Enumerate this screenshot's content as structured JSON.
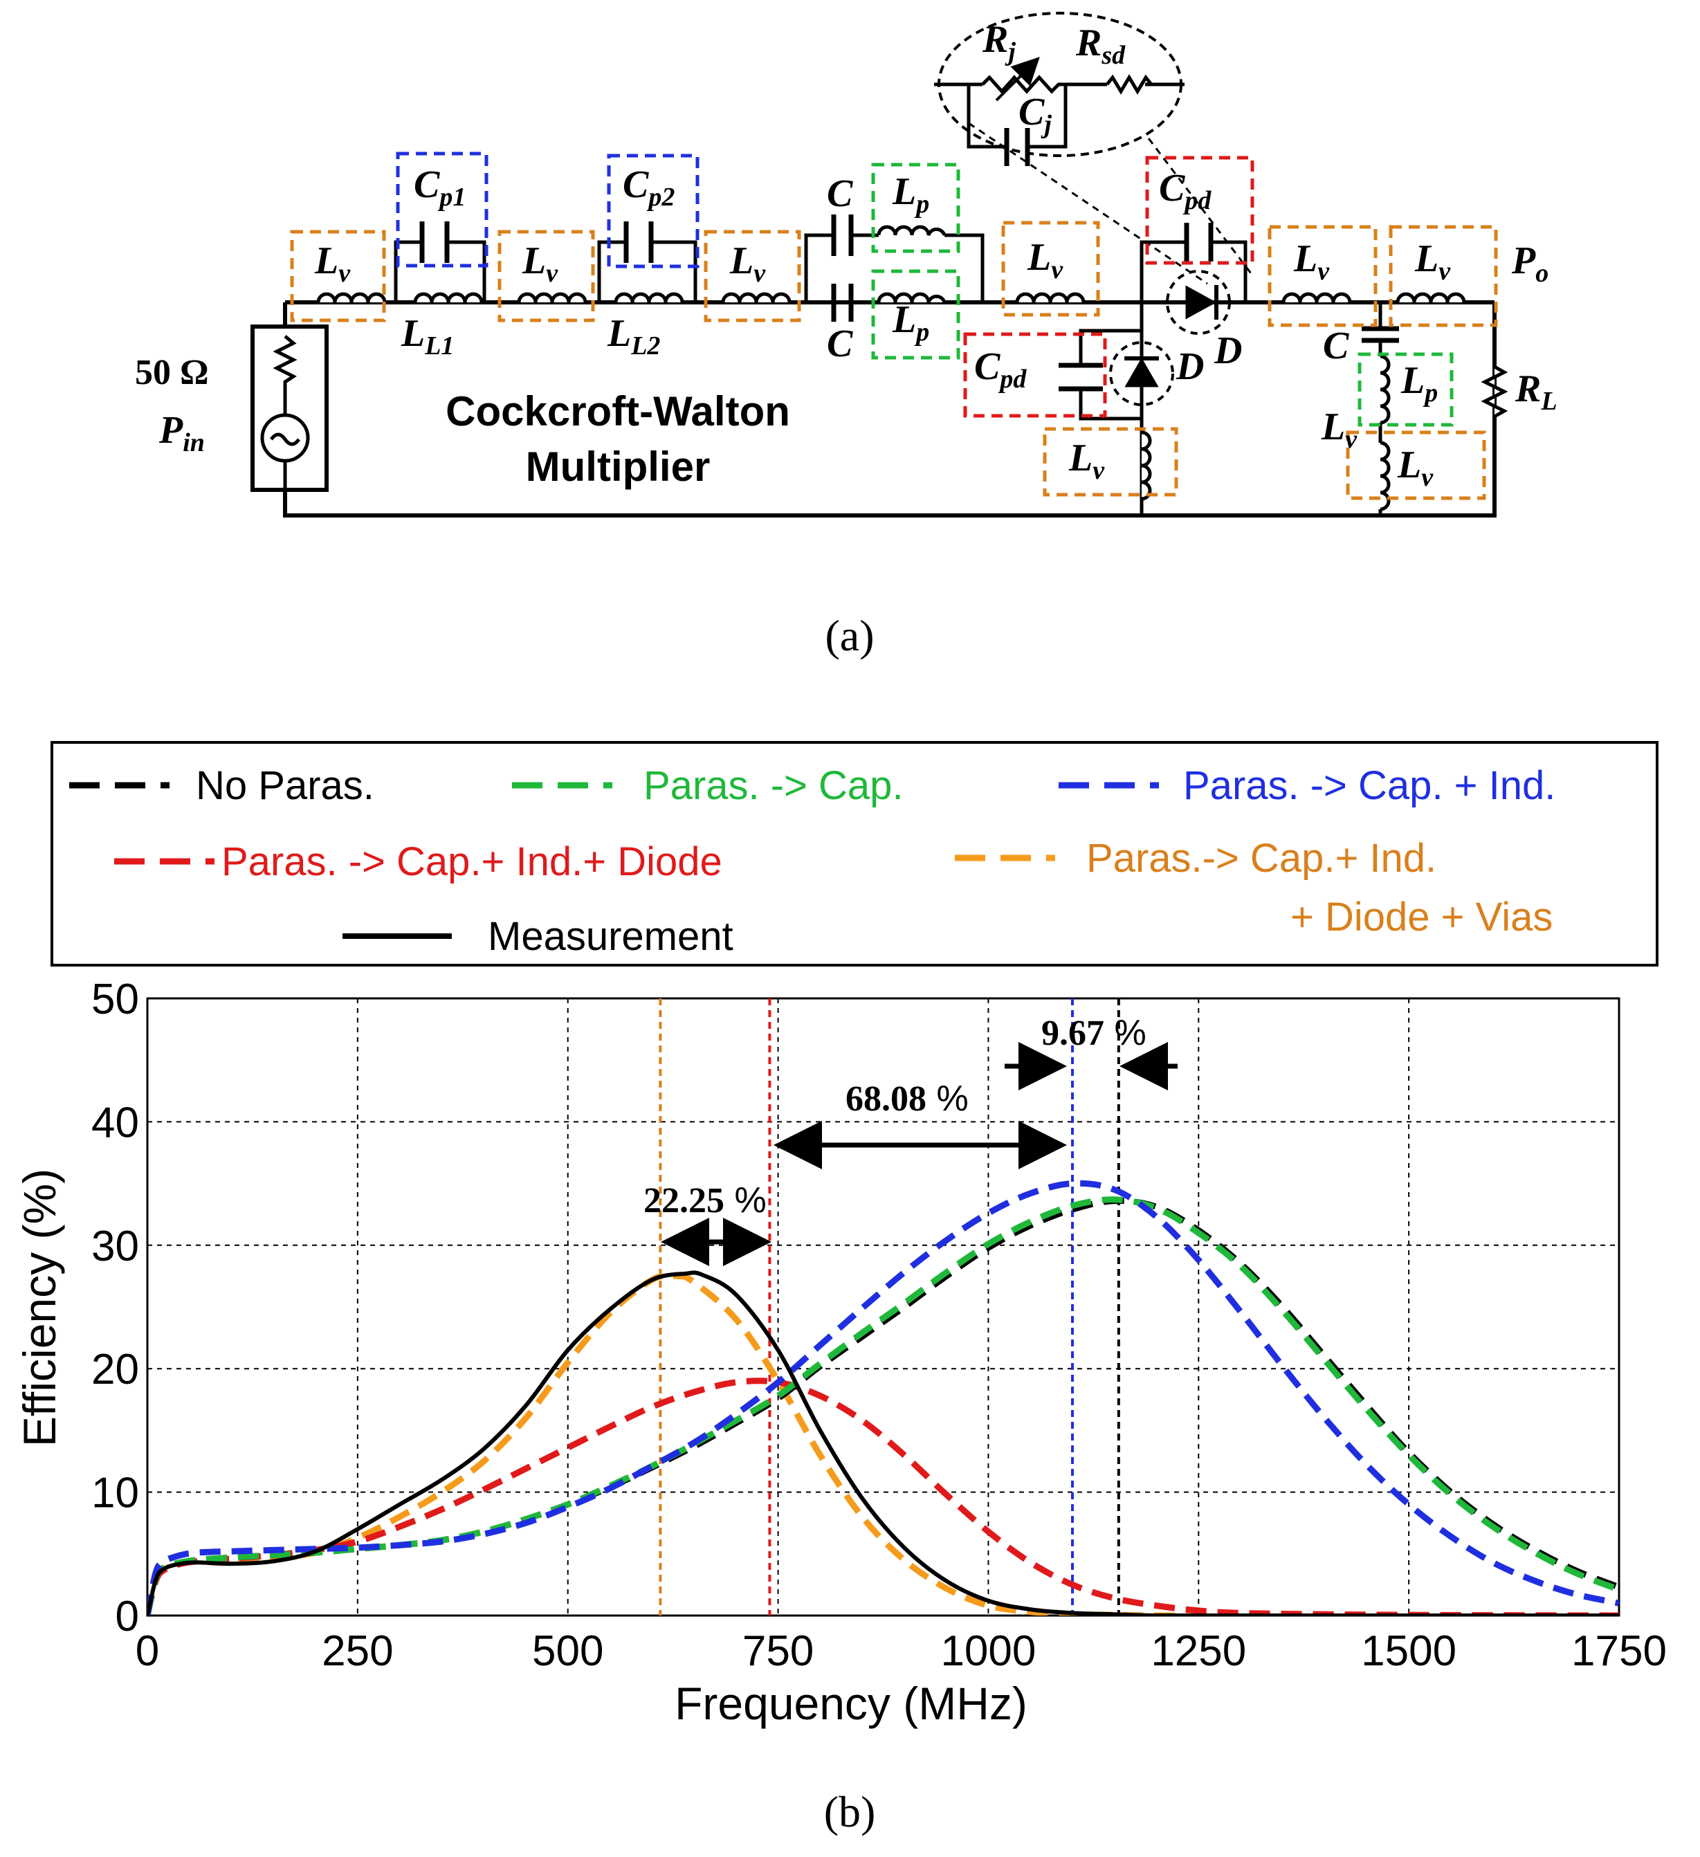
{
  "circuit": {
    "panel_label": "(a)",
    "title_line1": "Cockcroft-Walton",
    "title_line2": "Multiplier",
    "source": {
      "impedance": "50 Ω",
      "label_main": "P",
      "label_sub": "in"
    },
    "output": {
      "label_main": "P",
      "label_sub": "o"
    },
    "load": {
      "label_main": "R",
      "label_sub": "L"
    },
    "labels": {
      "lv": {
        "main": "L",
        "sub": "v"
      },
      "ll1": {
        "main": "L",
        "sub": "L1"
      },
      "ll2": {
        "main": "L",
        "sub": "L2"
      },
      "cp1": {
        "main": "C",
        "sub": "p1"
      },
      "cp2": {
        "main": "C",
        "sub": "p2"
      },
      "cpd": {
        "main": "C",
        "sub": "pd"
      },
      "lp": {
        "main": "L",
        "sub": "p"
      },
      "c": "C",
      "d": "D",
      "rj": {
        "main": "R",
        "sub": "j"
      },
      "rsd": {
        "main": "R",
        "sub": "sd"
      },
      "cj": {
        "main": "C",
        "sub": "j"
      }
    },
    "colors": {
      "orange": "#d9801c",
      "blue": "#1f2fe0",
      "green": "#1fb83a",
      "red": "#e01a1a",
      "wire": "#000000"
    }
  },
  "chart_data": {
    "type": "line",
    "panel_label": "(b)",
    "xlabel": "Frequency (MHz)",
    "ylabel": "Efficiency (%)",
    "xlim": [
      0,
      1750
    ],
    "ylim": [
      0,
      50
    ],
    "xticks": [
      0,
      250,
      500,
      750,
      1000,
      1250,
      1500,
      1750
    ],
    "yticks": [
      0,
      10,
      20,
      30,
      40,
      50
    ],
    "grid": true,
    "legend": {
      "position": "top",
      "entries": [
        {
          "label": "No Paras.",
          "color": "#000000",
          "style": "dashed"
        },
        {
          "label": "Paras. -> Cap.",
          "color": "#1fb83a",
          "style": "dashed"
        },
        {
          "label": "Paras. -> Cap. + Ind.",
          "color": "#1f2fe0",
          "style": "dashed"
        },
        {
          "label": "Paras. -> Cap.+ Ind.+ Diode",
          "color": "#e01a1a",
          "style": "dashed"
        },
        {
          "label_line1": "Paras.-> Cap.+ Ind.",
          "label_line2": "+ Diode + Vias",
          "color": "#f59b1c",
          "style": "dashed"
        },
        {
          "label": "Measurement",
          "color": "#000000",
          "style": "solid"
        }
      ]
    },
    "series": [
      {
        "name": "No Paras.",
        "color": "#000000",
        "style": "dashed",
        "x": [
          0,
          10,
          20,
          40,
          60,
          100,
          150,
          200,
          250,
          300,
          350,
          400,
          450,
          500,
          550,
          600,
          650,
          700,
          750,
          800,
          850,
          900,
          950,
          1000,
          1050,
          1100,
          1150,
          1200,
          1250,
          1300,
          1350,
          1400,
          1450,
          1500,
          1550,
          1600,
          1650,
          1700,
          1750
        ],
        "y": [
          0,
          3.0,
          3.9,
          4.3,
          4.5,
          4.7,
          4.9,
          5.1,
          5.4,
          5.7,
          6.1,
          6.8,
          7.8,
          9.0,
          10.4,
          12.0,
          13.7,
          15.6,
          17.6,
          20.2,
          22.6,
          25.0,
          27.5,
          29.8,
          31.6,
          32.9,
          33.6,
          33.1,
          31.2,
          28.5,
          25.0,
          21.0,
          17.0,
          13.2,
          10.0,
          7.4,
          5.3,
          3.6,
          2.3
        ]
      },
      {
        "name": "Paras. -> Cap.",
        "color": "#1fb83a",
        "style": "dashed",
        "x": [
          0,
          10,
          20,
          40,
          60,
          100,
          150,
          200,
          250,
          300,
          350,
          400,
          450,
          500,
          550,
          600,
          650,
          700,
          750,
          800,
          850,
          900,
          950,
          1000,
          1050,
          1100,
          1150,
          1200,
          1250,
          1300,
          1350,
          1400,
          1450,
          1500,
          1550,
          1600,
          1650,
          1700,
          1750
        ],
        "y": [
          0,
          3.0,
          3.9,
          4.3,
          4.5,
          4.7,
          4.9,
          5.1,
          5.4,
          5.7,
          6.1,
          6.8,
          7.8,
          9.0,
          10.5,
          12.1,
          13.9,
          15.8,
          17.8,
          20.4,
          22.9,
          25.3,
          27.8,
          30.1,
          31.9,
          33.2,
          33.7,
          33.0,
          31.0,
          28.3,
          24.7,
          20.7,
          16.7,
          13.0,
          9.8,
          7.2,
          5.1,
          3.4,
          2.1
        ]
      },
      {
        "name": "Paras. -> Cap. + Ind.",
        "color": "#1f2fe0",
        "style": "dashed",
        "x": [
          0,
          10,
          20,
          40,
          60,
          100,
          150,
          200,
          250,
          300,
          350,
          400,
          450,
          500,
          550,
          600,
          650,
          700,
          750,
          800,
          850,
          900,
          950,
          1000,
          1050,
          1100,
          1150,
          1200,
          1250,
          1300,
          1350,
          1400,
          1450,
          1500,
          1550,
          1600,
          1650,
          1700,
          1750
        ],
        "y": [
          0,
          3.5,
          4.4,
          4.9,
          5.1,
          5.2,
          5.3,
          5.4,
          5.5,
          5.7,
          6.0,
          6.6,
          7.5,
          8.8,
          10.3,
          12.1,
          14.0,
          16.3,
          18.9,
          21.9,
          24.9,
          27.8,
          30.4,
          32.6,
          34.2,
          35.0,
          34.5,
          32.3,
          28.8,
          24.6,
          20.2,
          16.0,
          12.2,
          9.0,
          6.4,
          4.3,
          2.8,
          1.7,
          1.0
        ]
      },
      {
        "name": "Paras. -> Cap.+ Ind.+ Diode",
        "color": "#e01a1a",
        "style": "dashed",
        "x": [
          0,
          10,
          20,
          40,
          60,
          100,
          150,
          200,
          250,
          300,
          350,
          400,
          450,
          500,
          550,
          600,
          650,
          700,
          750,
          800,
          850,
          900,
          950,
          1000,
          1050,
          1100,
          1150,
          1200,
          1250,
          1300,
          1400,
          1500,
          1600,
          1750
        ],
        "y": [
          0,
          2.8,
          3.7,
          4.2,
          4.4,
          4.6,
          4.9,
          5.3,
          6.0,
          7.2,
          8.6,
          10.2,
          11.9,
          13.6,
          15.3,
          16.9,
          18.1,
          18.9,
          18.9,
          17.8,
          15.8,
          13.0,
          9.8,
          6.8,
          4.3,
          2.5,
          1.4,
          0.8,
          0.4,
          0.2,
          0.1,
          0.05,
          0.02,
          0
        ]
      },
      {
        "name": "Paras.-> Cap.+ Ind. + Diode + Vias",
        "color": "#f59b1c",
        "style": "dashed",
        "x": [
          0,
          10,
          20,
          40,
          60,
          100,
          150,
          200,
          250,
          300,
          350,
          400,
          450,
          500,
          550,
          600,
          630,
          650,
          700,
          750,
          800,
          850,
          900,
          950,
          1000,
          1050,
          1100,
          1150,
          1200,
          1300,
          1500,
          1750
        ],
        "y": [
          0,
          3.0,
          3.9,
          4.3,
          4.4,
          4.5,
          4.7,
          5.1,
          6.3,
          8.0,
          10.0,
          12.5,
          16.0,
          20.5,
          24.5,
          27.2,
          27.5,
          27.0,
          24.0,
          19.0,
          13.0,
          8.0,
          4.5,
          2.2,
          0.8,
          0.3,
          0.1,
          0.05,
          0,
          0,
          0,
          0
        ]
      },
      {
        "name": "Measurement",
        "color": "#000000",
        "style": "solid",
        "x": [
          0,
          10,
          20,
          40,
          60,
          100,
          150,
          200,
          250,
          300,
          350,
          400,
          450,
          500,
          550,
          600,
          640,
          660,
          700,
          750,
          800,
          850,
          900,
          950,
          1000,
          1050,
          1100,
          1150,
          1200,
          1300,
          1500,
          1750
        ],
        "y": [
          0,
          2.9,
          3.8,
          4.2,
          4.3,
          4.2,
          4.4,
          5.2,
          7.0,
          9.0,
          11.0,
          13.5,
          17.0,
          21.5,
          24.8,
          27.2,
          27.7,
          27.6,
          26.0,
          21.5,
          15.0,
          9.5,
          5.5,
          2.8,
          1.2,
          0.5,
          0.2,
          0.1,
          0,
          0,
          0,
          0
        ]
      }
    ],
    "vlines": [
      {
        "x": 610,
        "color": "#d9801c"
      },
      {
        "x": 740,
        "color": "#e01a1a"
      },
      {
        "x": 1100,
        "color": "#1f2fe0"
      },
      {
        "x": 1155,
        "color": "#000000"
      }
    ],
    "annotations": [
      {
        "number": "22.25",
        "unit": " %"
      },
      {
        "number": "68.08",
        "unit": " %"
      },
      {
        "number": "9.67",
        "unit": " %"
      }
    ]
  }
}
